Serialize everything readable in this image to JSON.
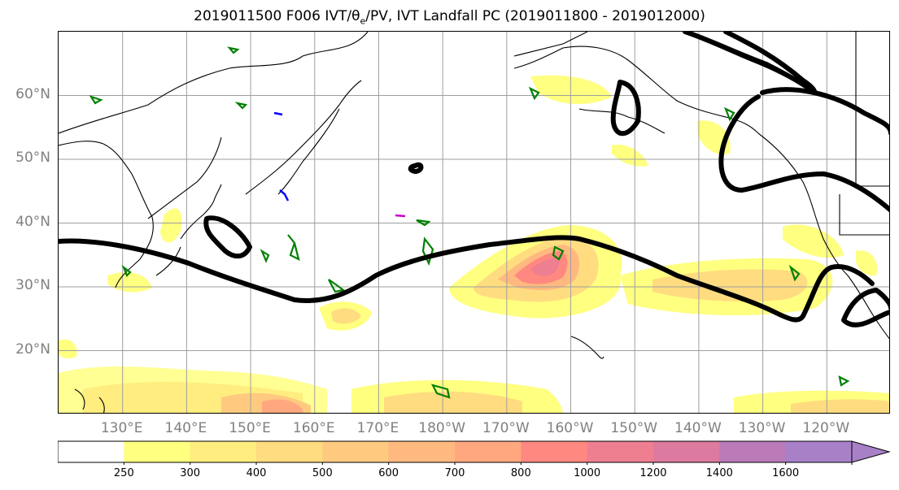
{
  "title": "2019011500 F006 IVT/θₑ/PV, IVT Landfall PC (2019011800 - 2019012000)",
  "title_parts": {
    "prefix": "2019011500 F006 IVT/",
    "theta": "θ",
    "sub": "e",
    "suffix": "/PV, IVT Landfall PC (2019011800 - 2019012000)"
  },
  "map": {
    "extent": {
      "lon_min": 120,
      "lon_max": 250,
      "lat_min": 10,
      "lat_max": 70
    },
    "lat_labels": [
      "60°N",
      "50°N",
      "40°N",
      "30°N",
      "20°N"
    ],
    "lat_values": [
      60,
      50,
      40,
      30,
      20
    ],
    "lon_labels": [
      "130°E",
      "140°E",
      "150°E",
      "160°E",
      "170°E",
      "180°W",
      "170°W",
      "160°W",
      "150°W",
      "140°W",
      "130°W",
      "120°W"
    ],
    "lon_values": [
      130,
      140,
      150,
      160,
      170,
      180,
      190,
      200,
      210,
      220,
      230,
      240
    ],
    "gridlines": true,
    "coastline_color": "#000000",
    "landfall_contour_color": "#000000",
    "theta_e_contour_color": "#008000",
    "pv_contour_color": "#0000ff",
    "pv_alt_color": "#cc00cc"
  },
  "colorbar": {
    "levels": [
      250,
      300,
      400,
      500,
      600,
      700,
      800,
      1000,
      1200,
      1400,
      1600
    ],
    "tick_labels": [
      "250",
      "300",
      "400",
      "500",
      "600",
      "700",
      "800",
      "1000",
      "1200",
      "1400",
      "1600"
    ],
    "colors": [
      "#ffffff",
      "#ffff80",
      "#ffed80",
      "#ffdc80",
      "#ffca80",
      "#ffb980",
      "#ffa880",
      "#ff8880",
      "#ee7f90",
      "#dd7aa0",
      "#bb7ab8",
      "#a880c8"
    ],
    "extend": "max"
  }
}
